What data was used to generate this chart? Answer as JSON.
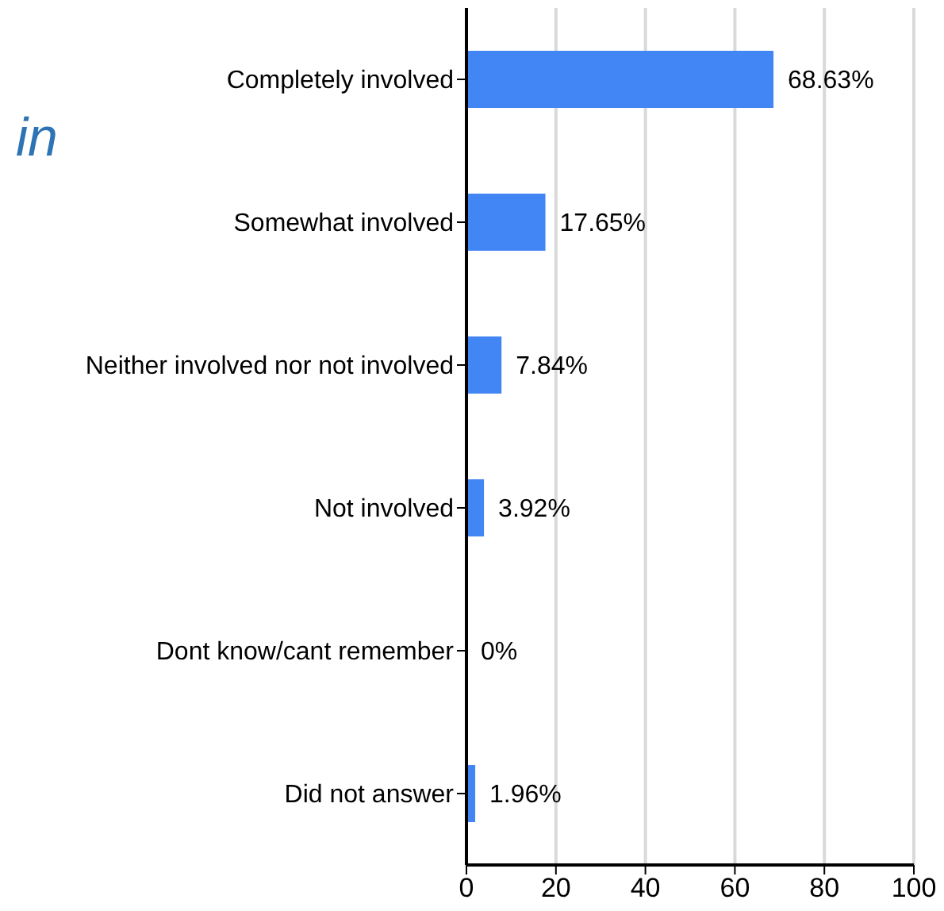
{
  "chart_data": {
    "type": "bar",
    "orientation": "horizontal",
    "title": "in",
    "categories": [
      "Completely involved",
      "Somewhat involved",
      "Neither involved nor not involved",
      "Not involved",
      "Dont know/cant remember",
      "Did not answer"
    ],
    "values": [
      68.63,
      17.65,
      7.84,
      3.92,
      0,
      1.96
    ],
    "value_labels": [
      "68.63%",
      "17.65%",
      "7.84%",
      "3.92%",
      "0%",
      "1.96%"
    ],
    "color": "#4285f4",
    "xlim": [
      0,
      100
    ],
    "xticks": [
      0,
      20,
      40,
      60,
      80,
      100
    ],
    "grid": "x"
  }
}
